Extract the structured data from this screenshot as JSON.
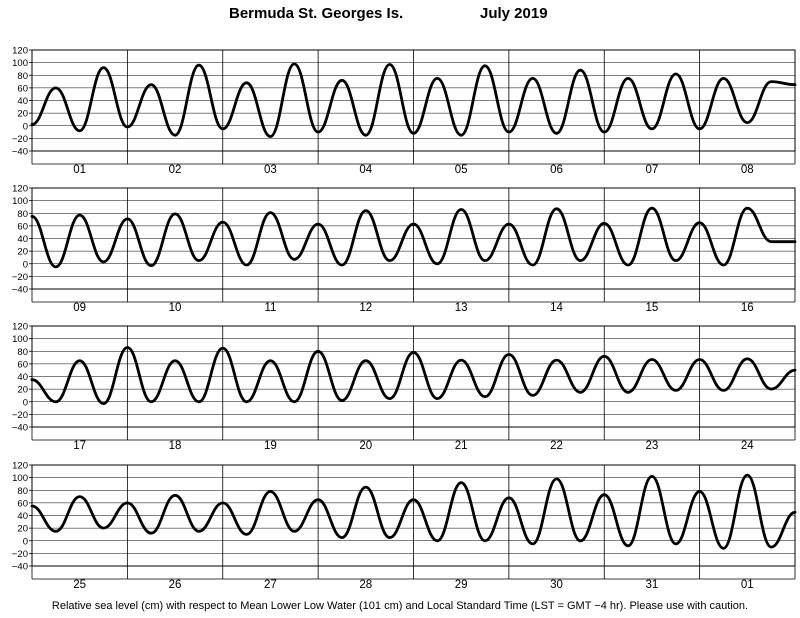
{
  "title": {
    "station": "Bermuda St. Georges Is.",
    "month": "July   2019"
  },
  "footnote": "Relative sea level (cm) with respect to Mean Lower Low Water (101 cm) and Local Standard Time (LST = GMT −4 hr). Please use with caution.",
  "chart_data": {
    "type": "line",
    "title": "Bermuda St. Georges Is.   July 2019",
    "ylabel": "",
    "xlabel": "",
    "ylim": [
      -40,
      120
    ],
    "yticks": [
      -40,
      -20,
      0,
      20,
      40,
      60,
      80,
      100,
      120
    ],
    "ytick_labels": [
      "−40",
      "−20",
      "0",
      "20",
      "40",
      "60",
      "80",
      "100",
      "120"
    ],
    "grid": true,
    "units": "cm",
    "x_unit": "hours since 00:00 LST of the first day in the panel",
    "panels": [
      {
        "day_labels": [
          "01",
          "02",
          "03",
          "04",
          "05",
          "06",
          "07",
          "08"
        ],
        "x": [
          0,
          6,
          12,
          18,
          24,
          30,
          36,
          42,
          48,
          54,
          60,
          66,
          72,
          78,
          84,
          90,
          96,
          102,
          108,
          114,
          120,
          126,
          132,
          138,
          144,
          150,
          156,
          162,
          168,
          174,
          180,
          186,
          192
        ],
        "y": [
          2,
          60,
          -8,
          92,
          -2,
          65,
          -15,
          96,
          -5,
          68,
          -17,
          98,
          -10,
          72,
          -15,
          97,
          -12,
          75,
          -15,
          95,
          -10,
          75,
          -12,
          88,
          -10,
          75,
          -5,
          82,
          -5,
          75,
          5,
          70,
          65
        ]
      },
      {
        "day_labels": [
          "09",
          "10",
          "11",
          "12",
          "13",
          "14",
          "15",
          "16"
        ],
        "x": [
          0,
          6,
          12,
          18,
          24,
          30,
          36,
          42,
          48,
          54,
          60,
          66,
          72,
          78,
          84,
          90,
          96,
          102,
          108,
          114,
          120,
          126,
          132,
          138,
          144,
          150,
          156,
          162,
          168,
          174,
          180,
          186,
          192
        ],
        "y": [
          75,
          -5,
          77,
          3,
          71,
          -3,
          79,
          5,
          66,
          -2,
          81,
          7,
          63,
          -2,
          84,
          5,
          63,
          0,
          86,
          5,
          63,
          -2,
          87,
          5,
          64,
          -2,
          88,
          5,
          65,
          -2,
          88,
          35,
          35
        ]
      },
      {
        "day_labels": [
          "17",
          "18",
          "19",
          "20",
          "21",
          "22",
          "23",
          "24"
        ],
        "x": [
          0,
          6,
          12,
          18,
          24,
          30,
          36,
          42,
          48,
          54,
          60,
          66,
          72,
          78,
          84,
          90,
          96,
          102,
          108,
          114,
          120,
          126,
          132,
          138,
          144,
          150,
          156,
          162,
          168,
          174,
          180,
          186,
          192
        ],
        "y": [
          35,
          0,
          65,
          -3,
          86,
          0,
          65,
          0,
          85,
          0,
          65,
          0,
          80,
          2,
          65,
          5,
          78,
          5,
          66,
          8,
          75,
          10,
          66,
          15,
          72,
          15,
          67,
          18,
          67,
          18,
          68,
          20,
          50
        ]
      },
      {
        "day_labels": [
          "25",
          "26",
          "27",
          "28",
          "29",
          "30",
          "31",
          "01"
        ],
        "x": [
          0,
          6,
          12,
          18,
          24,
          30,
          36,
          42,
          48,
          54,
          60,
          66,
          72,
          78,
          84,
          90,
          96,
          102,
          108,
          114,
          120,
          126,
          132,
          138,
          144,
          150,
          156,
          162,
          168,
          174,
          180,
          186,
          192
        ],
        "y": [
          55,
          15,
          70,
          20,
          60,
          12,
          72,
          15,
          60,
          10,
          78,
          15,
          65,
          5,
          85,
          5,
          65,
          0,
          92,
          0,
          68,
          -5,
          98,
          0,
          73,
          -8,
          102,
          -5,
          78,
          -12,
          104,
          -10,
          45
        ]
      }
    ]
  }
}
